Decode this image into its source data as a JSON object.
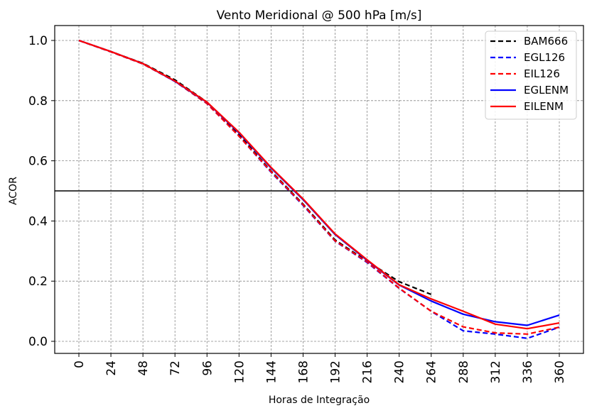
{
  "chart_data": {
    "type": "line",
    "title": "Vento Meridional @ 500 hPa [m/s]",
    "xlabel": "Horas de Integração",
    "ylabel": "ACOR",
    "x": [
      0,
      24,
      48,
      72,
      96,
      120,
      144,
      168,
      192,
      216,
      240,
      264,
      288,
      312,
      336,
      360
    ],
    "xticks": [
      "0",
      "24",
      "48",
      "72",
      "96",
      "120",
      "144",
      "168",
      "192",
      "216",
      "240",
      "264",
      "288",
      "312",
      "336",
      "360"
    ],
    "yticks": [
      "0.0",
      "0.2",
      "0.4",
      "0.6",
      "0.8",
      "1.0"
    ],
    "ytick_values": [
      0.0,
      0.2,
      0.4,
      0.6,
      0.8,
      1.0
    ],
    "xlim": [
      -24,
      374
    ],
    "ylim": [
      -0.04,
      1.05
    ],
    "grid": true,
    "reference_line": {
      "y": 0.5,
      "color": "#000000"
    },
    "legend_position": "top-right",
    "series": [
      {
        "name": "BAM666",
        "color": "#000000",
        "style": "dashed",
        "values": [
          1.0,
          0.963,
          0.924,
          0.869,
          0.795,
          0.686,
          0.566,
          0.456,
          0.337,
          0.266,
          0.198,
          0.156,
          null,
          null,
          null,
          null
        ]
      },
      {
        "name": "EGL126",
        "color": "#0000ff",
        "style": "dashed",
        "values": [
          1.0,
          0.962,
          0.922,
          0.864,
          0.79,
          0.682,
          0.562,
          0.452,
          0.333,
          0.262,
          0.176,
          0.1,
          0.035,
          0.024,
          0.01,
          0.047
        ]
      },
      {
        "name": "EIL126",
        "color": "#ff0000",
        "style": "dashed",
        "values": [
          1.0,
          0.962,
          0.922,
          0.864,
          0.79,
          0.682,
          0.564,
          0.454,
          0.334,
          0.264,
          0.177,
          0.1,
          0.048,
          0.028,
          0.024,
          0.047
        ]
      },
      {
        "name": "EGLENM",
        "color": "#0000ff",
        "style": "solid",
        "values": [
          1.0,
          0.963,
          0.923,
          0.864,
          0.794,
          0.693,
          0.576,
          0.471,
          0.355,
          0.269,
          0.187,
          0.134,
          0.09,
          0.065,
          0.053,
          0.087
        ]
      },
      {
        "name": "EILENM",
        "color": "#ff0000",
        "style": "solid",
        "values": [
          1.0,
          0.963,
          0.923,
          0.865,
          0.795,
          0.695,
          0.578,
          0.473,
          0.357,
          0.271,
          0.188,
          0.141,
          0.1,
          0.057,
          0.042,
          0.061
        ]
      }
    ]
  }
}
